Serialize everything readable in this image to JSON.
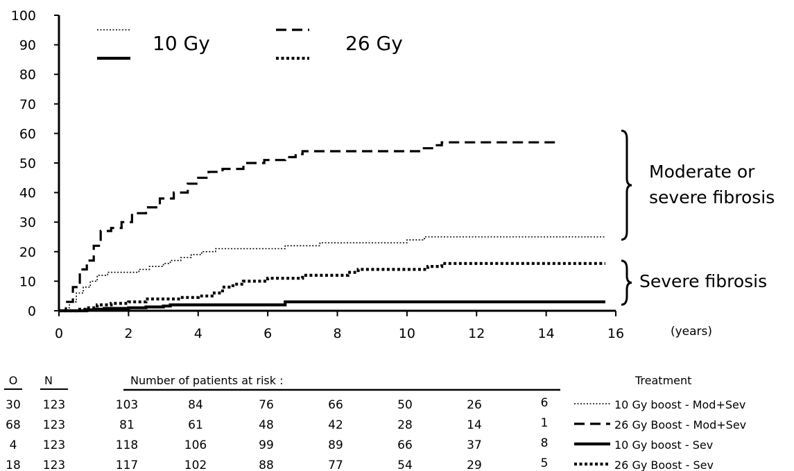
{
  "chart_data": {
    "type": "line",
    "xlim": [
      0,
      16
    ],
    "ylim": [
      0,
      100
    ],
    "x_ticks": [
      "0",
      "2",
      "4",
      "6",
      "8",
      "10",
      "12",
      "14",
      "16"
    ],
    "y_ticks": [
      "0",
      "10",
      "20",
      "30",
      "40",
      "50",
      "60",
      "70",
      "80",
      "90",
      "100"
    ],
    "x_unit": "(years)",
    "grid": false,
    "legend": [
      {
        "label": "10 Gy",
        "styles": [
          "dotted-thin",
          "solid-thick"
        ]
      },
      {
        "label": "26 Gy",
        "styles": [
          "dashed",
          "dotted-thick"
        ]
      }
    ],
    "series": [
      {
        "name": "10 Gy boost - Mod+Sev",
        "style": "dotted-thin",
        "x": [
          0,
          0.2,
          0.3,
          0.5,
          0.7,
          0.9,
          1.1,
          1.4,
          2.0,
          2.3,
          2.6,
          3.0,
          3.2,
          3.5,
          3.8,
          4.1,
          4.5,
          5.0,
          5.5,
          6.0,
          6.5,
          7.0,
          7.5,
          8.5,
          9.5,
          10.0,
          10.3,
          10.5,
          12.0,
          14.0,
          15.7
        ],
        "y": [
          0,
          1,
          3,
          6,
          8,
          10,
          12,
          13,
          13,
          14,
          15,
          16,
          17,
          18,
          19,
          20,
          21,
          21,
          21,
          21,
          22,
          22,
          23,
          23,
          23,
          24,
          24,
          25,
          25,
          25,
          25
        ]
      },
      {
        "name": "26 Gy Boost - Mod+Sev",
        "style": "dashed",
        "x": [
          0,
          0.2,
          0.4,
          0.6,
          0.8,
          1.0,
          1.2,
          1.5,
          1.8,
          2.1,
          2.5,
          2.9,
          3.3,
          3.7,
          4.0,
          4.3,
          4.7,
          5.0,
          5.3,
          5.6,
          5.9,
          6.2,
          6.5,
          6.8,
          7.0,
          7.3,
          8.0,
          9.0,
          10.0,
          10.4,
          10.8,
          11.0,
          11.5,
          12.5,
          14.3
        ],
        "y": [
          0,
          3,
          8,
          14,
          17,
          22,
          27,
          28,
          30,
          33,
          35,
          38,
          40,
          43,
          45,
          47,
          48,
          48,
          50,
          50,
          51,
          51,
          52,
          53,
          54,
          54,
          54,
          54,
          54,
          55,
          56,
          57,
          57,
          57,
          57
        ]
      },
      {
        "name": "10 Gy boost - Sev",
        "style": "solid-thick",
        "x": [
          0,
          0.8,
          1.0,
          1.3,
          2.0,
          2.5,
          3.0,
          3.2,
          4.0,
          5.0,
          6.0,
          6.5,
          7.0,
          10.0,
          13.0,
          15.7
        ],
        "y": [
          0,
          0.3,
          0.5,
          0.8,
          1.0,
          1.3,
          1.6,
          2.0,
          2.0,
          2.0,
          2.0,
          3.0,
          3.0,
          3.0,
          3.0,
          3.0
        ]
      },
      {
        "name": "26 Gy Boost - Sev",
        "style": "dotted-thick",
        "x": [
          0,
          0.5,
          0.8,
          1.1,
          1.5,
          2.0,
          2.5,
          3.0,
          3.5,
          4.0,
          4.4,
          4.7,
          5.0,
          5.3,
          5.6,
          6.0,
          6.5,
          7.0,
          7.5,
          8.0,
          8.3,
          8.6,
          9.0,
          9.5,
          10.0,
          10.3,
          10.6,
          11.0,
          12.0,
          14.0,
          15.7
        ],
        "y": [
          0,
          0.5,
          1,
          2,
          2.5,
          3,
          4,
          4,
          4.5,
          5,
          6,
          8,
          9,
          10,
          10,
          11,
          11,
          12,
          12,
          12,
          13,
          14,
          14,
          14,
          14,
          14,
          15,
          16,
          16,
          16,
          16
        ]
      }
    ],
    "annotations": [
      {
        "text": [
          "Moderate or",
          "severe fibrosis"
        ],
        "y_range": [
          25,
          60
        ]
      },
      {
        "text": [
          "Severe fibrosis"
        ],
        "y_range": [
          3,
          16
        ]
      }
    ]
  },
  "risk_table": {
    "col_o": "O",
    "col_n": "N",
    "header": "Number of patients at risk :",
    "treatment_header": "Treatment",
    "rows": [
      {
        "o": "30",
        "n": "123",
        "counts": [
          "103",
          "84",
          "76",
          "66",
          "50",
          "26",
          "6"
        ],
        "treatment": "10 Gy boost - Mod+Sev",
        "style": "dotted-thin"
      },
      {
        "o": "68",
        "n": "123",
        "counts": [
          "81",
          "61",
          "48",
          "42",
          "28",
          "14",
          "1"
        ],
        "treatment": "26 Gy Boost - Mod+Sev",
        "style": "dashed"
      },
      {
        "o": "4",
        "n": "123",
        "counts": [
          "118",
          "106",
          "99",
          "89",
          "66",
          "37",
          "8"
        ],
        "treatment": "10 Gy boost - Sev",
        "style": "solid-thick"
      },
      {
        "o": "18",
        "n": "123",
        "counts": [
          "117",
          "102",
          "88",
          "77",
          "54",
          "29",
          "5"
        ],
        "treatment": "26 Gy Boost - Sev",
        "style": "dotted-thick"
      }
    ]
  }
}
